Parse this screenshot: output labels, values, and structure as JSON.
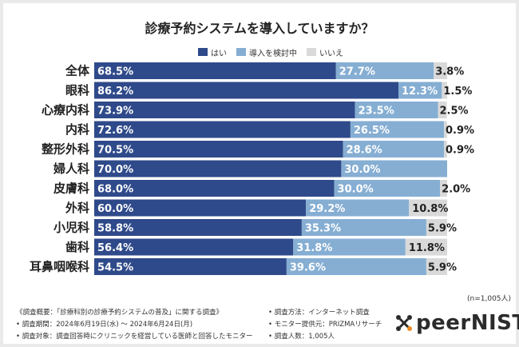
{
  "colors": {
    "yes": "#2f4a8a",
    "considering": "#86aed3",
    "no": "#d9d9d9"
  },
  "footer": {
    "left_lines": [
      "《調査概要：「診療科別の診療予約システムの普及」に関する調査》",
      "• 調査期間：2024年6月19日(水) ～ 2024年6月24日(月)",
      "• 調査対象：調査回答時にクリニックを経営している医師と回答したモニター"
    ],
    "right_lines": [
      "• 調査方法：インターネット調査",
      "• モニター提供元：PRIZMAリサーチ",
      "• 調査人数：1,005人"
    ],
    "logo_text": "peerNIST"
  },
  "chart_data": {
    "type": "bar",
    "orientation": "horizontal",
    "stacked": true,
    "percent_stacked": true,
    "title": "診療予約システムを導入していますか？",
    "note": "(n=1,005人)",
    "legend_position": "top",
    "categories": [
      "全体",
      "眼科",
      "心療内科",
      "内科",
      "整形外科",
      "婦人科",
      "皮膚科",
      "外科",
      "小児科",
      "歯科",
      "耳鼻咽喉科"
    ],
    "series": [
      {
        "name": "はい",
        "values": [
          68.5,
          86.2,
          73.9,
          72.6,
          70.5,
          70.0,
          68.0,
          60.0,
          58.8,
          56.4,
          54.5
        ]
      },
      {
        "name": "導入を検討中",
        "values": [
          27.7,
          12.3,
          23.5,
          26.5,
          28.6,
          30.0,
          30.0,
          29.2,
          35.3,
          31.8,
          39.6
        ]
      },
      {
        "name": "いいえ",
        "values": [
          3.8,
          1.5,
          2.5,
          0.9,
          0.9,
          0.0,
          2.0,
          10.8,
          5.9,
          11.8,
          5.9
        ]
      }
    ],
    "value_labels": [
      [
        "68.5%",
        "27.7%",
        "3.8%"
      ],
      [
        "86.2%",
        "12.3%",
        "1.5%"
      ],
      [
        "73.9%",
        "23.5%",
        "2.5%"
      ],
      [
        "72.6%",
        "26.5%",
        "0.9%"
      ],
      [
        "70.5%",
        "28.6%",
        "0.9%"
      ],
      [
        "70.0%",
        "30.0%",
        ""
      ],
      [
        "68.0%",
        "30.0%",
        "2.0%"
      ],
      [
        "60.0%",
        "29.2%",
        "10.8%"
      ],
      [
        "58.8%",
        "35.3%",
        "5.9%"
      ],
      [
        "56.4%",
        "31.8%",
        "11.8%"
      ],
      [
        "54.5%",
        "39.6%",
        "5.9%"
      ]
    ],
    "xlim": [
      0,
      100
    ],
    "grid": false
  }
}
